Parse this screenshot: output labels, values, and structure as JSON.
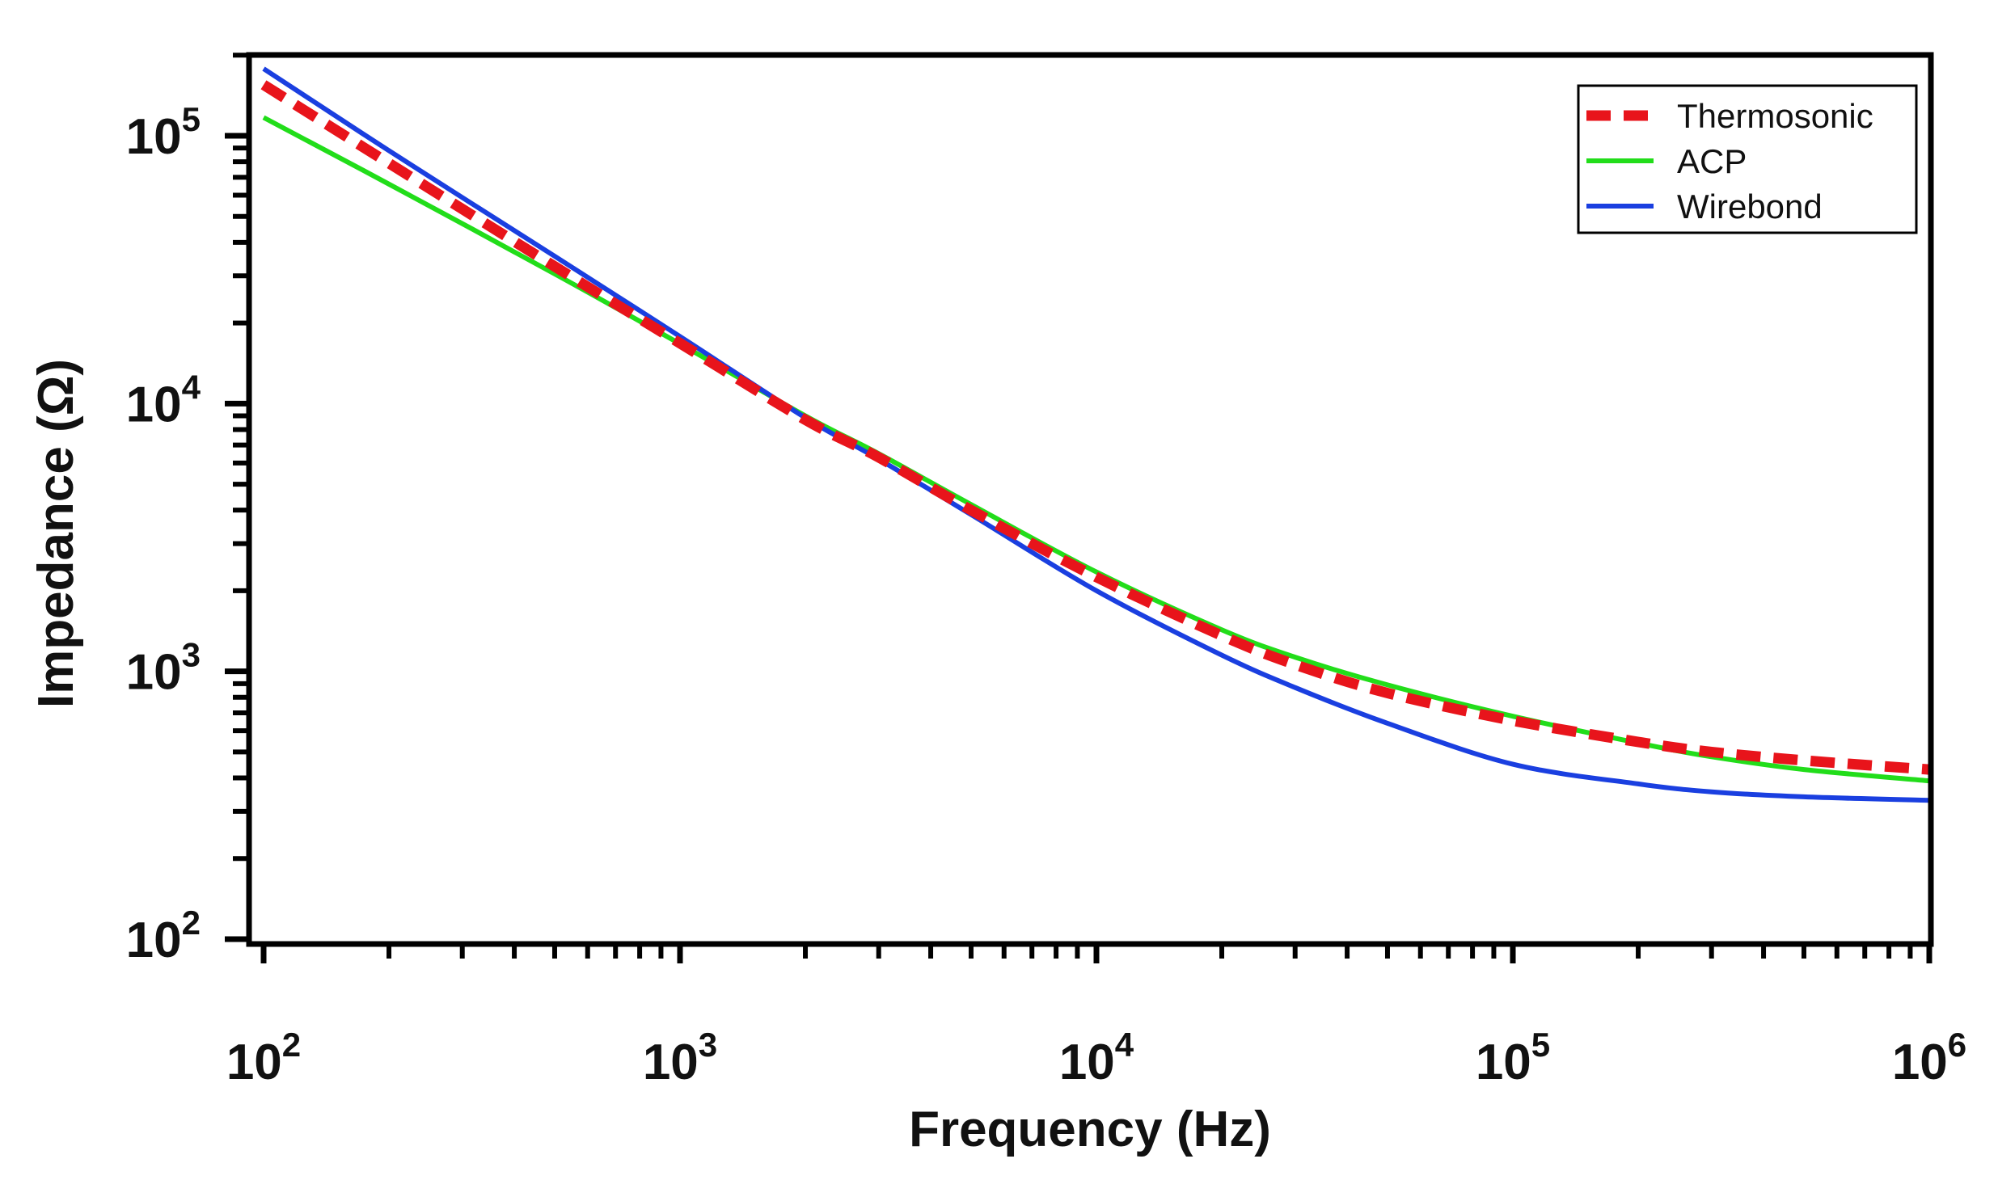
{
  "chart_data": {
    "type": "line",
    "title": "",
    "xlabel": "Frequency (Hz)",
    "ylabel": "Impedance (Ω)",
    "xscale": "log",
    "yscale": "log",
    "xlim": [
      100,
      1000000
    ],
    "ylim": [
      100,
      200000
    ],
    "grid": false,
    "legend_position": "top-right",
    "x_ticks": [
      {
        "value": 100,
        "base": "10",
        "exp": "2"
      },
      {
        "value": 1000,
        "base": "10",
        "exp": "3"
      },
      {
        "value": 10000,
        "base": "10",
        "exp": "4"
      },
      {
        "value": 100000,
        "base": "10",
        "exp": "5"
      },
      {
        "value": 1000000,
        "base": "10",
        "exp": "6"
      }
    ],
    "y_ticks": [
      {
        "value": 100,
        "base": "10",
        "exp": "2"
      },
      {
        "value": 1000,
        "base": "10",
        "exp": "3"
      },
      {
        "value": 10000,
        "base": "10",
        "exp": "4"
      },
      {
        "value": 100000,
        "base": "10",
        "exp": "5"
      }
    ],
    "x": [
      100,
      200,
      500,
      1000,
      2000,
      3000,
      5000,
      10000,
      20000,
      30000,
      50000,
      100000,
      200000,
      300000,
      500000,
      1000000
    ],
    "series": [
      {
        "name": "Thermosonic",
        "color": "#e8141b",
        "style": "dashed",
        "values": [
          155000,
          79000,
          32500,
          16800,
          8700,
          6300,
          4000,
          2250,
          1360,
          1060,
          830,
          655,
          545,
          500,
          465,
          430
        ]
      },
      {
        "name": "ACP",
        "color": "#22dd1a",
        "style": "solid",
        "values": [
          117000,
          66000,
          30500,
          16700,
          9000,
          6500,
          4200,
          2350,
          1430,
          1130,
          890,
          680,
          540,
          480,
          430,
          390
        ]
      },
      {
        "name": "Wirebond",
        "color": "#1a3fe0",
        "style": "solid",
        "values": [
          178000,
          88000,
          35500,
          17800,
          8850,
          6200,
          3850,
          2000,
          1150,
          870,
          640,
          450,
          380,
          355,
          340,
          330
        ]
      }
    ]
  }
}
